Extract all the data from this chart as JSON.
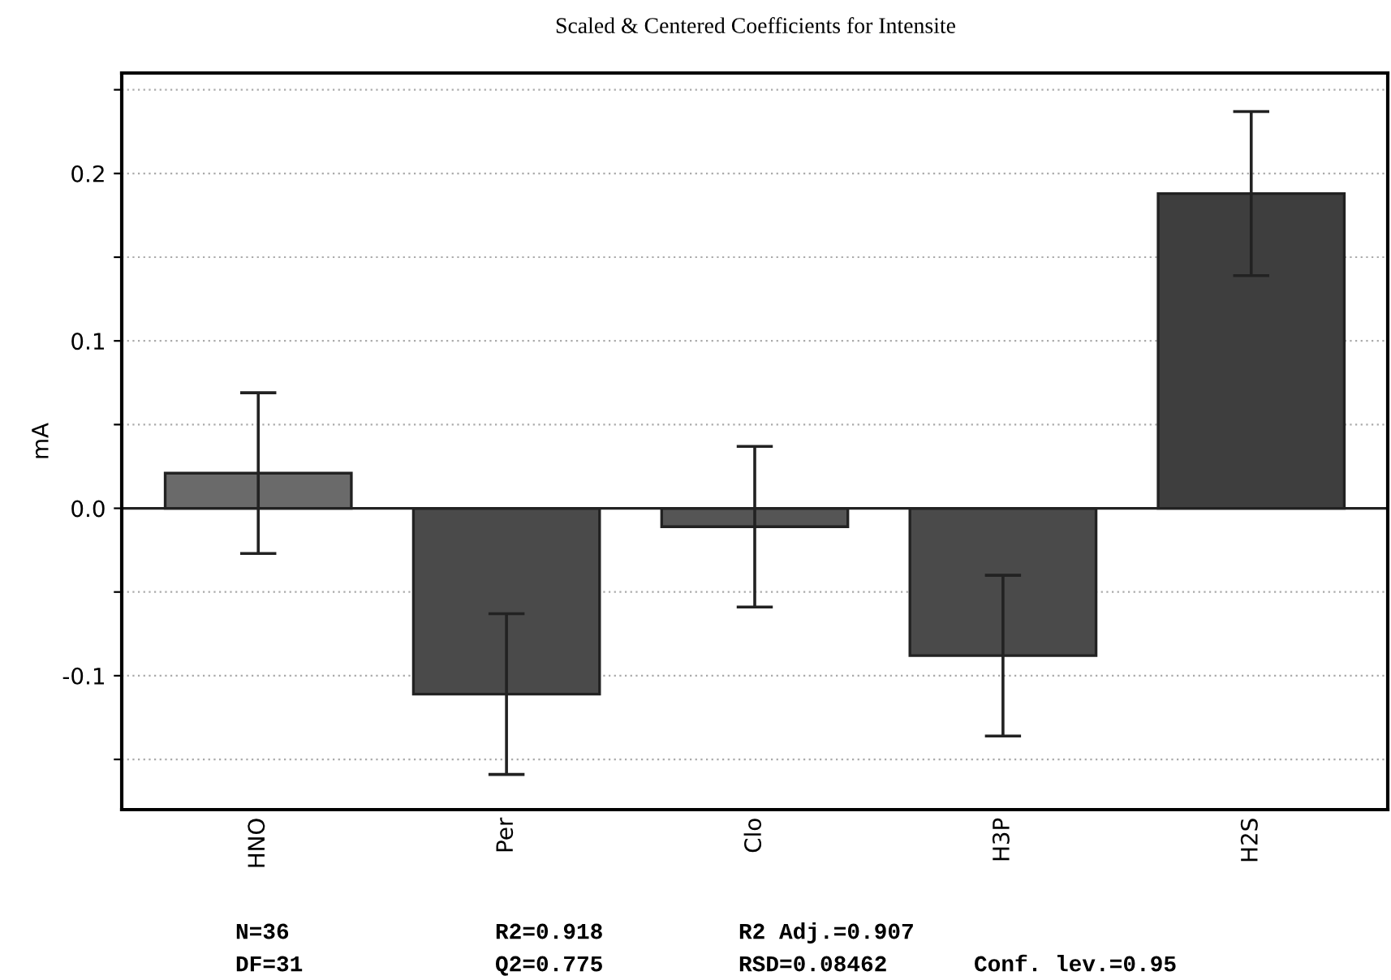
{
  "chart_data": {
    "type": "bar",
    "title": "Scaled & Centered Coefficients for Intensite",
    "ylabel": "mA",
    "categories": [
      "HNO",
      "Per",
      "Clo",
      "H3P",
      "H2S"
    ],
    "values": [
      0.021,
      -0.111,
      -0.011,
      -0.088,
      0.188
    ],
    "errors": [
      0.048,
      0.048,
      0.048,
      0.048,
      0.049
    ],
    "colors": [
      "#6a6a6a",
      "#4a4a4a",
      "#555555",
      "#4a4a4a",
      "#3e3e3e"
    ],
    "ylim": [
      -0.18,
      0.26
    ],
    "yticks": [
      {
        "value": -0.15,
        "label": null
      },
      {
        "value": -0.1,
        "label": "-0.1"
      },
      {
        "value": -0.05,
        "label": null
      },
      {
        "value": 0.0,
        "label": "0.0"
      },
      {
        "value": 0.05,
        "label": null
      },
      {
        "value": 0.1,
        "label": "0.1"
      },
      {
        "value": 0.15,
        "label": null
      },
      {
        "value": 0.2,
        "label": "0.2"
      },
      {
        "value": 0.25,
        "label": null
      }
    ],
    "grid": "y",
    "annotations": [
      "N=36",
      "R2=0.918",
      "R2 Adj.=0.907",
      "DF=31",
      "Q2=0.775",
      "RSD=0.08462",
      "Conf. lev.=0.95"
    ]
  }
}
